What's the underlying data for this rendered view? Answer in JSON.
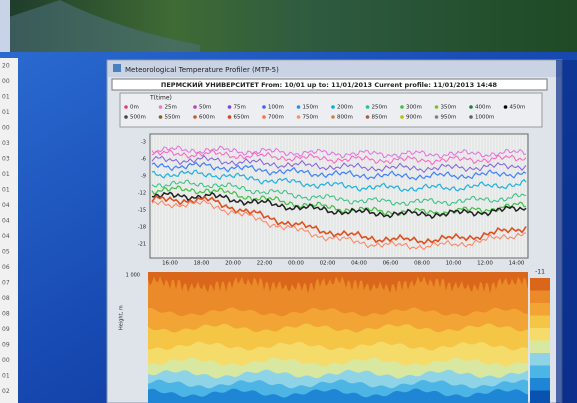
{
  "left_column": [
    "20",
    "00",
    "01",
    "01",
    "00",
    "03",
    "03",
    "01",
    "01",
    "04",
    "04",
    "04",
    "05",
    "06",
    "07",
    "08",
    "08",
    "09",
    "09",
    "00",
    "01",
    "02"
  ],
  "window": {
    "title": "Meteorological Temperature Profiler (MTP-5)",
    "header": "ПЕРМСКИЙ УНИВЕРСИТЕТ  From: 10/01 up to: 11/01/2013  Current profile: 11/01/2013 14:48",
    "legend": {
      "title": "T(time)",
      "entries": [
        "0m",
        "25m",
        "50m",
        "75m",
        "100m",
        "150m",
        "200m",
        "250m",
        "300m",
        "350m",
        "400m",
        "450m",
        "500m",
        "550m",
        "600m",
        "650m",
        "700m",
        "750m",
        "800m",
        "850m",
        "900m",
        "950m",
        "1000m"
      ]
    },
    "upper_plot": {
      "y_labels": [
        "-3",
        "-6",
        "-9",
        "-12",
        "-15",
        "-18",
        "-21"
      ],
      "x_labels": [
        "16:00",
        "18:00",
        "20:00",
        "22:00",
        "00:00",
        "02:00",
        "04:00",
        "06:00",
        "08:00",
        "10:00",
        "12:00",
        "14:00"
      ]
    },
    "lower_plot": {
      "y_label": "1 000",
      "axis_title": "Height, m",
      "colorbar_label": "-11"
    }
  }
}
